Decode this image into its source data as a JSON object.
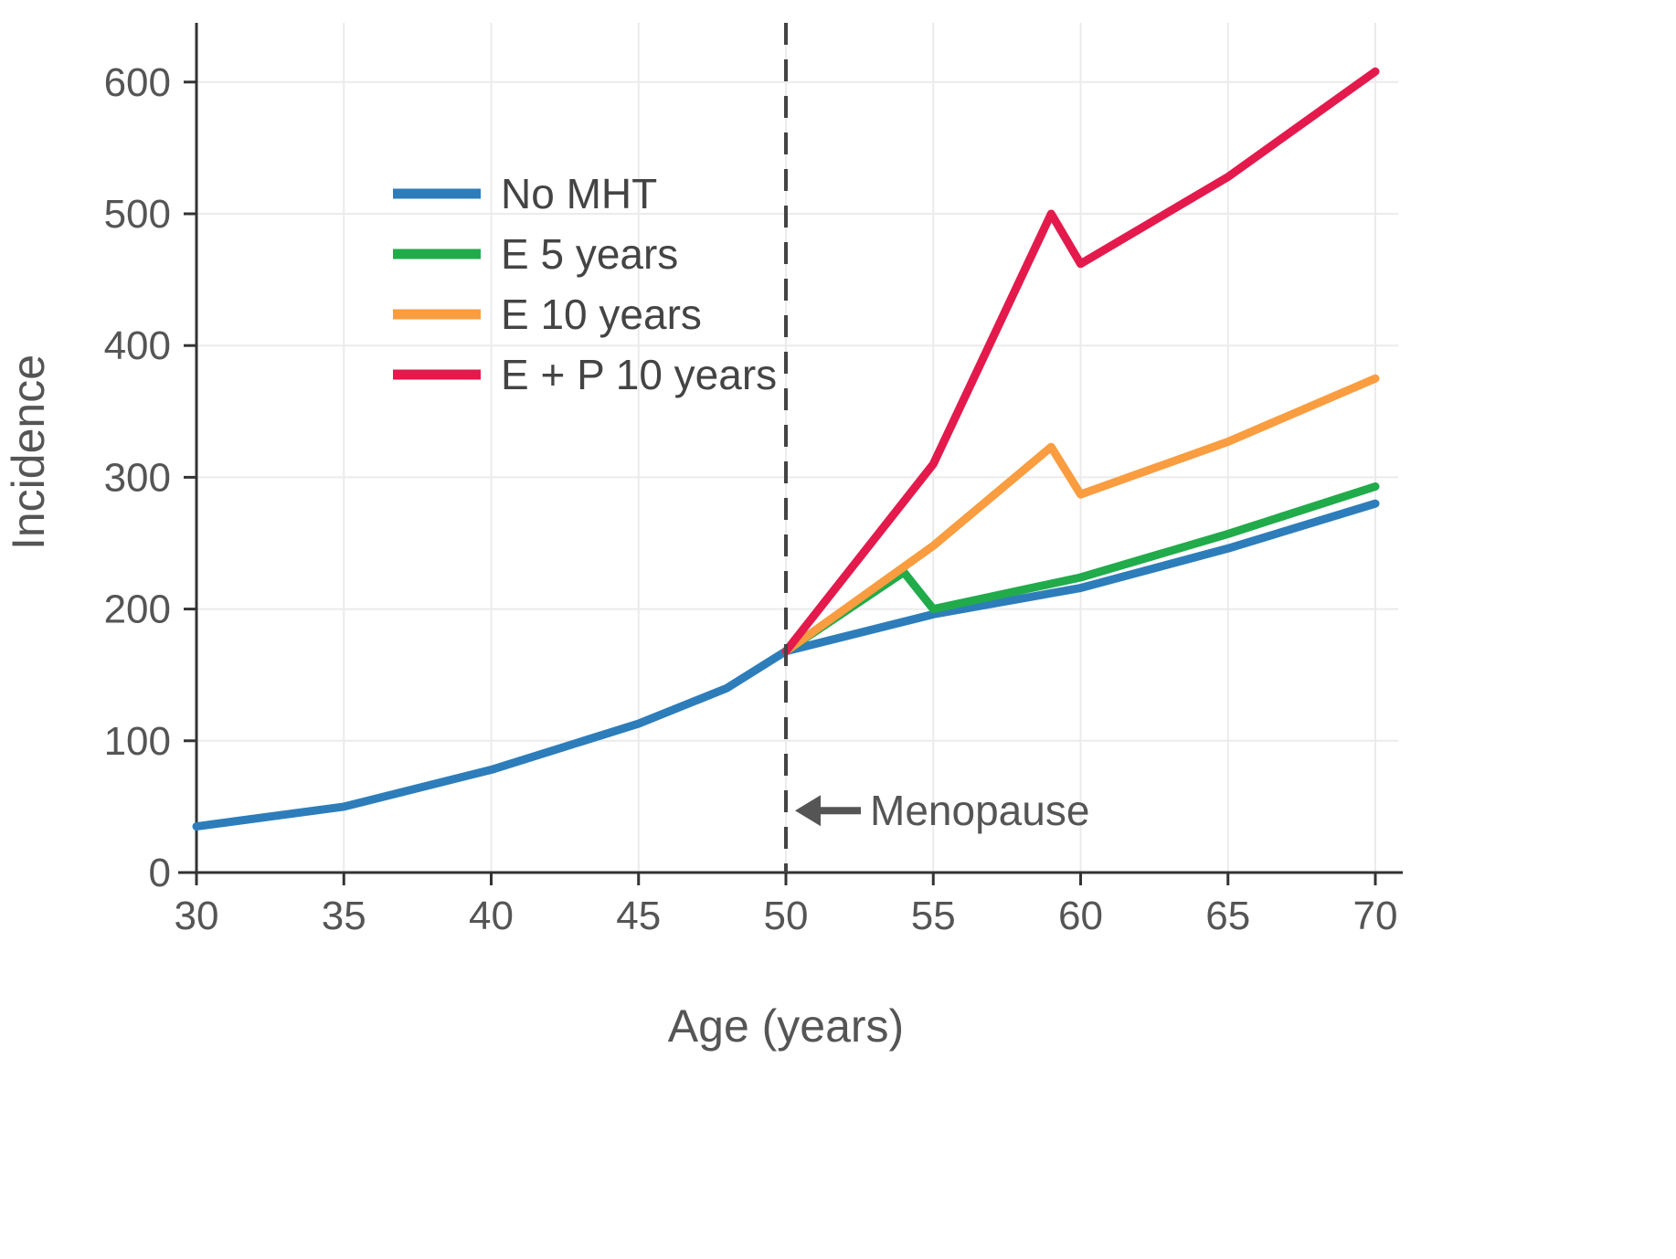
{
  "chart_data": {
    "type": "line",
    "title": "",
    "xlabel": "Age (years)",
    "ylabel": "Incidence",
    "xlim": [
      30,
      70
    ],
    "ylim": [
      0,
      638
    ],
    "xticks": [
      30,
      35,
      40,
      45,
      50,
      55,
      60,
      65,
      70
    ],
    "yticks": [
      0,
      100,
      200,
      300,
      400,
      500,
      600
    ],
    "grid": true,
    "legend_position": "upper-left-inside",
    "colors": {
      "axis": "#333333",
      "grid": "#ebebeb",
      "tick_label": "#555555",
      "axis_label": "#555555",
      "annotation": "#555555",
      "vline": "#444444"
    },
    "series": [
      {
        "name": "No MHT",
        "color": "#2d7dbb",
        "x": [
          30,
          35,
          40,
          45,
          48,
          50,
          55,
          60,
          65,
          70
        ],
        "y": [
          35,
          50,
          78,
          113,
          140,
          168,
          196,
          216,
          246,
          280
        ]
      },
      {
        "name": "E 5 years",
        "color": "#21ab4b",
        "x": [
          50,
          54,
          55,
          60,
          65,
          70
        ],
        "y": [
          168,
          228,
          200,
          224,
          257,
          293
        ]
      },
      {
        "name": "E 10 years",
        "color": "#f99d40",
        "x": [
          50,
          55,
          59,
          60,
          65,
          70
        ],
        "y": [
          168,
          248,
          323,
          287,
          327,
          375
        ]
      },
      {
        "name": "E + P 10 years",
        "color": "#e41a4c",
        "x": [
          50,
          55,
          59,
          60,
          65,
          70
        ],
        "y": [
          168,
          310,
          500,
          462,
          528,
          608
        ]
      }
    ],
    "annotations": [
      {
        "type": "vline",
        "x": 50,
        "style": "dashed",
        "label": "Menopause",
        "label_y": 47,
        "arrow": "left"
      }
    ]
  }
}
